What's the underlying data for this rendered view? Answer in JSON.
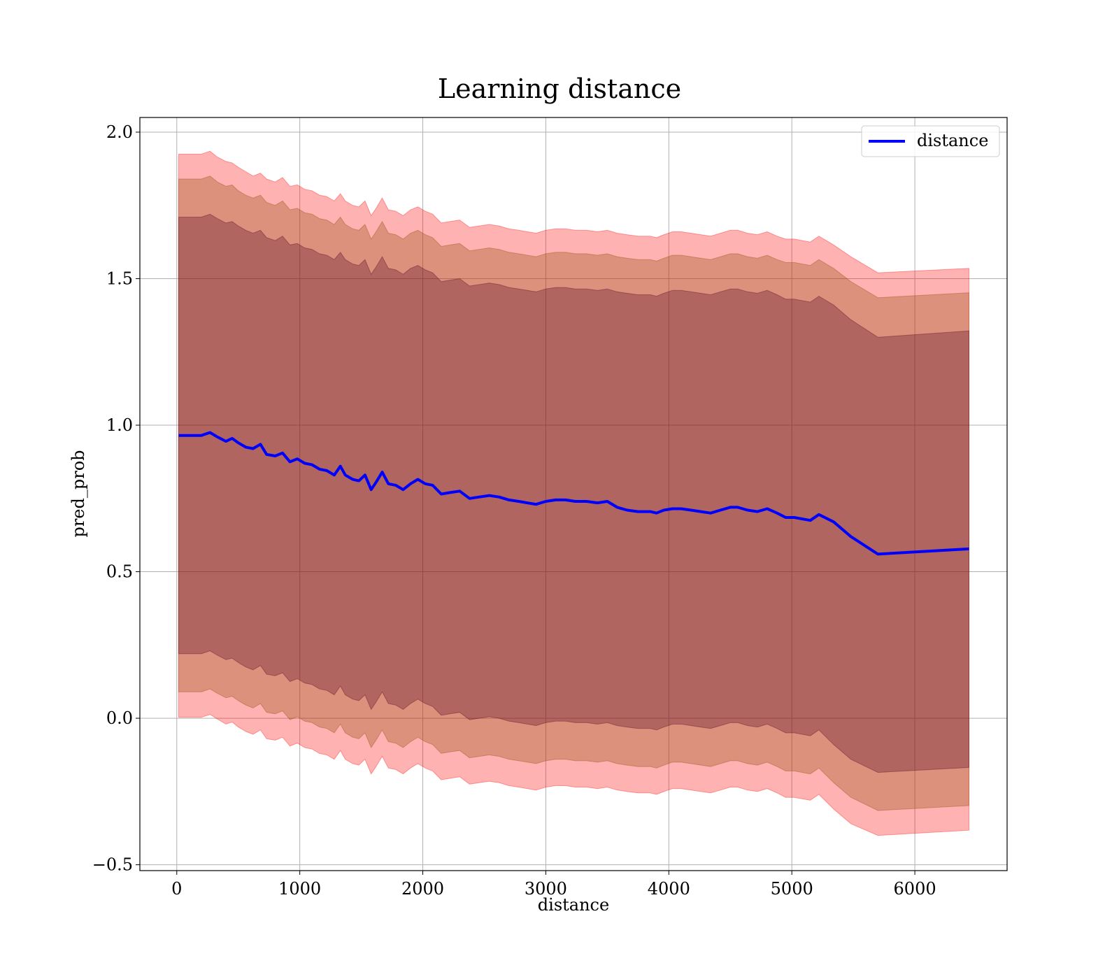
{
  "chart_data": {
    "type": "line",
    "title": "Learning distance",
    "xlabel": "distance",
    "ylabel": "pred_prob",
    "xlim": [
      -300,
      6750
    ],
    "ylim": [
      -0.52,
      2.05
    ],
    "xticks": [
      0,
      1000,
      2000,
      3000,
      4000,
      5000,
      6000
    ],
    "xtick_labels": [
      "0",
      "1000",
      "2000",
      "3000",
      "4000",
      "5000",
      "6000"
    ],
    "yticks": [
      -0.5,
      0.0,
      0.5,
      1.0,
      1.5,
      2.0
    ],
    "ytick_labels": [
      "−0.5",
      "0.0",
      "0.5",
      "1.0",
      "1.5",
      "2.0"
    ],
    "grid": true,
    "legend_position": "top-right",
    "series": [
      {
        "name": "distance",
        "color": "#0000ff",
        "x": [
          15,
          100,
          200,
          270,
          330,
          400,
          450,
          500,
          560,
          620,
          680,
          730,
          800,
          860,
          920,
          980,
          1040,
          1100,
          1160,
          1220,
          1280,
          1330,
          1370,
          1430,
          1480,
          1530,
          1580,
          1620,
          1670,
          1720,
          1780,
          1840,
          1900,
          1960,
          2020,
          2080,
          2150,
          2220,
          2300,
          2380,
          2460,
          2540,
          2620,
          2700,
          2780,
          2850,
          2920,
          3000,
          3080,
          3160,
          3240,
          3330,
          3420,
          3500,
          3580,
          3660,
          3750,
          3850,
          3900,
          3960,
          4030,
          4100,
          4180,
          4260,
          4340,
          4420,
          4500,
          4560,
          4640,
          4720,
          4800,
          4880,
          4950,
          5020,
          5150,
          5220,
          5340,
          5480,
          5700,
          6440
        ],
        "y": [
          0.965,
          0.965,
          0.965,
          0.975,
          0.96,
          0.945,
          0.955,
          0.94,
          0.925,
          0.92,
          0.935,
          0.9,
          0.895,
          0.905,
          0.875,
          0.885,
          0.87,
          0.865,
          0.85,
          0.845,
          0.83,
          0.86,
          0.83,
          0.815,
          0.81,
          0.83,
          0.78,
          0.805,
          0.84,
          0.8,
          0.795,
          0.78,
          0.8,
          0.815,
          0.8,
          0.795,
          0.765,
          0.77,
          0.775,
          0.75,
          0.755,
          0.76,
          0.755,
          0.745,
          0.74,
          0.735,
          0.73,
          0.74,
          0.745,
          0.745,
          0.74,
          0.74,
          0.735,
          0.74,
          0.72,
          0.71,
          0.705,
          0.705,
          0.7,
          0.71,
          0.715,
          0.715,
          0.71,
          0.705,
          0.7,
          0.71,
          0.72,
          0.72,
          0.71,
          0.705,
          0.715,
          0.7,
          0.685,
          0.685,
          0.675,
          0.695,
          0.67,
          0.62,
          0.56,
          0.578
        ]
      }
    ],
    "bands": [
      {
        "color": "#ff0000",
        "opacity": 0.3,
        "upper": [
          1.925,
          1.925,
          1.925,
          1.935,
          1.915,
          1.9,
          1.895,
          1.88,
          1.865,
          1.85,
          1.86,
          1.84,
          1.83,
          1.845,
          1.815,
          1.82,
          1.805,
          1.8,
          1.785,
          1.78,
          1.765,
          1.79,
          1.765,
          1.75,
          1.745,
          1.765,
          1.715,
          1.74,
          1.775,
          1.735,
          1.73,
          1.715,
          1.735,
          1.745,
          1.73,
          1.72,
          1.69,
          1.695,
          1.7,
          1.675,
          1.68,
          1.685,
          1.68,
          1.67,
          1.665,
          1.66,
          1.655,
          1.665,
          1.67,
          1.67,
          1.665,
          1.665,
          1.66,
          1.665,
          1.655,
          1.65,
          1.645,
          1.645,
          1.64,
          1.65,
          1.66,
          1.66,
          1.655,
          1.65,
          1.645,
          1.655,
          1.665,
          1.665,
          1.655,
          1.65,
          1.66,
          1.645,
          1.635,
          1.635,
          1.625,
          1.645,
          1.615,
          1.575,
          1.52,
          1.535
        ],
        "lower": [
          0.003,
          0.003,
          0.003,
          0.013,
          -0.003,
          -0.02,
          -0.013,
          -0.03,
          -0.045,
          -0.055,
          -0.04,
          -0.07,
          -0.075,
          -0.065,
          -0.095,
          -0.085,
          -0.1,
          -0.105,
          -0.12,
          -0.125,
          -0.14,
          -0.11,
          -0.14,
          -0.155,
          -0.16,
          -0.14,
          -0.19,
          -0.165,
          -0.13,
          -0.17,
          -0.175,
          -0.19,
          -0.17,
          -0.155,
          -0.17,
          -0.18,
          -0.21,
          -0.205,
          -0.2,
          -0.225,
          -0.22,
          -0.215,
          -0.22,
          -0.23,
          -0.235,
          -0.24,
          -0.245,
          -0.235,
          -0.23,
          -0.23,
          -0.235,
          -0.235,
          -0.24,
          -0.235,
          -0.245,
          -0.25,
          -0.255,
          -0.255,
          -0.26,
          -0.25,
          -0.24,
          -0.24,
          -0.245,
          -0.25,
          -0.255,
          -0.245,
          -0.235,
          -0.235,
          -0.245,
          -0.25,
          -0.24,
          -0.255,
          -0.27,
          -0.27,
          -0.28,
          -0.26,
          -0.31,
          -0.36,
          -0.4,
          -0.382
        ]
      },
      {
        "color": "#8b4500",
        "opacity": 0.3,
        "upper": [
          1.84,
          1.84,
          1.84,
          1.85,
          1.83,
          1.815,
          1.82,
          1.8,
          1.785,
          1.775,
          1.785,
          1.76,
          1.75,
          1.765,
          1.735,
          1.74,
          1.725,
          1.72,
          1.705,
          1.7,
          1.685,
          1.71,
          1.685,
          1.67,
          1.665,
          1.685,
          1.635,
          1.66,
          1.695,
          1.655,
          1.65,
          1.635,
          1.655,
          1.665,
          1.65,
          1.64,
          1.61,
          1.615,
          1.62,
          1.595,
          1.6,
          1.605,
          1.6,
          1.59,
          1.585,
          1.58,
          1.575,
          1.585,
          1.59,
          1.59,
          1.585,
          1.585,
          1.58,
          1.585,
          1.575,
          1.57,
          1.565,
          1.565,
          1.56,
          1.57,
          1.58,
          1.58,
          1.575,
          1.57,
          1.565,
          1.575,
          1.585,
          1.585,
          1.575,
          1.57,
          1.58,
          1.565,
          1.555,
          1.555,
          1.545,
          1.565,
          1.535,
          1.49,
          1.435,
          1.452
        ],
        "lower": [
          0.09,
          0.09,
          0.09,
          0.1,
          0.085,
          0.07,
          0.075,
          0.06,
          0.045,
          0.035,
          0.05,
          0.02,
          0.015,
          0.025,
          -0.005,
          0.005,
          -0.01,
          -0.015,
          -0.03,
          -0.035,
          -0.05,
          -0.02,
          -0.05,
          -0.065,
          -0.07,
          -0.05,
          -0.1,
          -0.075,
          -0.04,
          -0.08,
          -0.085,
          -0.1,
          -0.08,
          -0.065,
          -0.08,
          -0.09,
          -0.12,
          -0.115,
          -0.11,
          -0.135,
          -0.13,
          -0.125,
          -0.13,
          -0.14,
          -0.145,
          -0.15,
          -0.155,
          -0.145,
          -0.14,
          -0.14,
          -0.145,
          -0.145,
          -0.15,
          -0.145,
          -0.155,
          -0.16,
          -0.165,
          -0.165,
          -0.17,
          -0.16,
          -0.15,
          -0.15,
          -0.155,
          -0.16,
          -0.165,
          -0.155,
          -0.145,
          -0.145,
          -0.155,
          -0.16,
          -0.15,
          -0.165,
          -0.18,
          -0.18,
          -0.19,
          -0.17,
          -0.22,
          -0.27,
          -0.315,
          -0.298
        ]
      },
      {
        "color": "#4b0020",
        "opacity": 0.3,
        "upper": [
          1.71,
          1.71,
          1.71,
          1.72,
          1.705,
          1.69,
          1.695,
          1.68,
          1.665,
          1.655,
          1.665,
          1.64,
          1.63,
          1.645,
          1.615,
          1.62,
          1.605,
          1.6,
          1.585,
          1.58,
          1.565,
          1.59,
          1.565,
          1.55,
          1.545,
          1.565,
          1.515,
          1.54,
          1.575,
          1.535,
          1.53,
          1.515,
          1.535,
          1.545,
          1.53,
          1.52,
          1.49,
          1.495,
          1.5,
          1.475,
          1.48,
          1.485,
          1.48,
          1.47,
          1.465,
          1.46,
          1.455,
          1.465,
          1.47,
          1.47,
          1.465,
          1.465,
          1.46,
          1.465,
          1.455,
          1.45,
          1.445,
          1.445,
          1.44,
          1.45,
          1.46,
          1.46,
          1.455,
          1.45,
          1.445,
          1.455,
          1.465,
          1.465,
          1.455,
          1.45,
          1.46,
          1.445,
          1.43,
          1.43,
          1.42,
          1.44,
          1.41,
          1.36,
          1.3,
          1.322
        ],
        "lower": [
          0.22,
          0.22,
          0.22,
          0.23,
          0.215,
          0.2,
          0.205,
          0.19,
          0.175,
          0.165,
          0.18,
          0.15,
          0.145,
          0.155,
          0.125,
          0.135,
          0.12,
          0.115,
          0.1,
          0.095,
          0.08,
          0.11,
          0.08,
          0.065,
          0.06,
          0.08,
          0.03,
          0.055,
          0.09,
          0.05,
          0.045,
          0.03,
          0.05,
          0.065,
          0.05,
          0.04,
          0.01,
          0.015,
          0.02,
          -0.005,
          0.0,
          0.005,
          0.0,
          -0.01,
          -0.015,
          -0.02,
          -0.025,
          -0.015,
          -0.01,
          -0.01,
          -0.015,
          -0.015,
          -0.02,
          -0.015,
          -0.025,
          -0.03,
          -0.035,
          -0.035,
          -0.04,
          -0.03,
          -0.02,
          -0.02,
          -0.025,
          -0.03,
          -0.035,
          -0.025,
          -0.015,
          -0.015,
          -0.025,
          -0.03,
          -0.02,
          -0.035,
          -0.05,
          -0.05,
          -0.06,
          -0.04,
          -0.09,
          -0.14,
          -0.185,
          -0.168
        ]
      }
    ]
  }
}
